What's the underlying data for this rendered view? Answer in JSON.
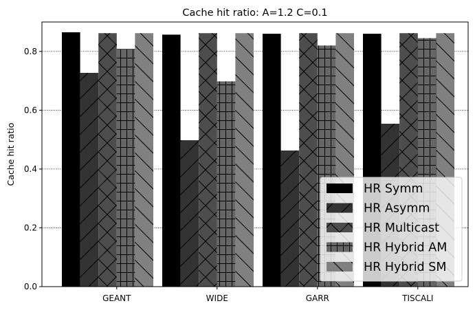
{
  "chart_data": {
    "type": "bar",
    "title": "Cache hit ratio: A=1.2 C=0.1",
    "xlabel": "",
    "ylabel": "Cache hit ratio",
    "categories": [
      "GEANT",
      "WIDE",
      "GARR",
      "TISCALI"
    ],
    "ylim": [
      0,
      0.9
    ],
    "yticks": [
      0.0,
      0.2,
      0.4,
      0.6,
      0.8
    ],
    "ytick_labels": [
      "0.0",
      "0.2",
      "0.4",
      "0.6",
      "0.8"
    ],
    "grid": "horizontal dotted",
    "legend_position": "lower-right",
    "series": [
      {
        "name": "HR Symm",
        "color": "#000000",
        "hatch": "none",
        "values": [
          0.865,
          0.857,
          0.86,
          0.86
        ]
      },
      {
        "name": "HR Asymm",
        "color": "#333333",
        "hatch": "diagonal",
        "values": [
          0.727,
          0.498,
          0.463,
          0.554
        ]
      },
      {
        "name": "HR Multicast",
        "color": "#4d4d4d",
        "hatch": "cross-diagonal",
        "values": [
          0.862,
          0.862,
          0.862,
          0.862
        ]
      },
      {
        "name": "HR Hybrid AM",
        "color": "#666666",
        "hatch": "grid",
        "values": [
          0.808,
          0.698,
          0.82,
          0.845
        ]
      },
      {
        "name": "HR Hybrid SM",
        "color": "#808080",
        "hatch": "back-diagonal",
        "values": [
          0.862,
          0.862,
          0.862,
          0.862
        ]
      }
    ]
  }
}
